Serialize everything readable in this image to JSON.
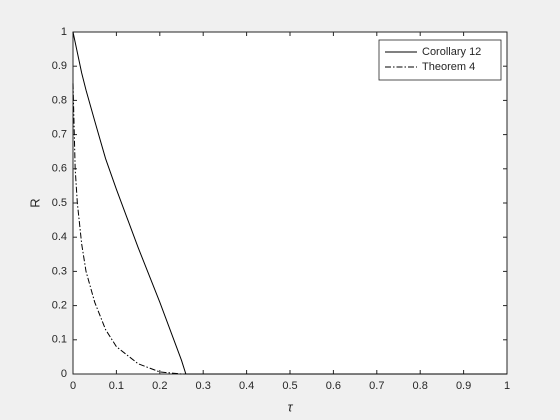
{
  "chart_data": {
    "type": "line",
    "xlabel": "τ",
    "ylabel": "R",
    "x": [
      0,
      0.005,
      0.01,
      0.02,
      0.03,
      0.05,
      0.075,
      0.1,
      0.15,
      0.2,
      0.25,
      0.26,
      0.3,
      0.5,
      1
    ],
    "series": [
      {
        "name": "Corollary 12",
        "color": "#000000",
        "dash": "solid",
        "values": [
          1,
          0.97,
          0.94,
          0.88,
          0.83,
          0.74,
          0.63,
          0.54,
          0.37,
          0.21,
          0.04,
          0,
          0,
          0,
          0
        ]
      },
      {
        "name": "Theorem 4",
        "color": "#000000",
        "dash": "dashdot",
        "values": [
          0.85,
          0.6,
          0.5,
          0.38,
          0.3,
          0.21,
          0.13,
          0.08,
          0.03,
          0.006,
          0,
          0,
          0,
          0,
          0
        ]
      }
    ],
    "xlim": [
      0,
      1
    ],
    "ylim": [
      0,
      1
    ],
    "xticks": [
      0,
      0.1,
      0.2,
      0.3,
      0.4,
      0.5,
      0.6,
      0.7,
      0.8,
      0.9,
      1
    ],
    "yticks": [
      0,
      0.1,
      0.2,
      0.3,
      0.4,
      0.5,
      0.6,
      0.7,
      0.8,
      0.9,
      1
    ],
    "legend": "northeast",
    "grid": false
  }
}
